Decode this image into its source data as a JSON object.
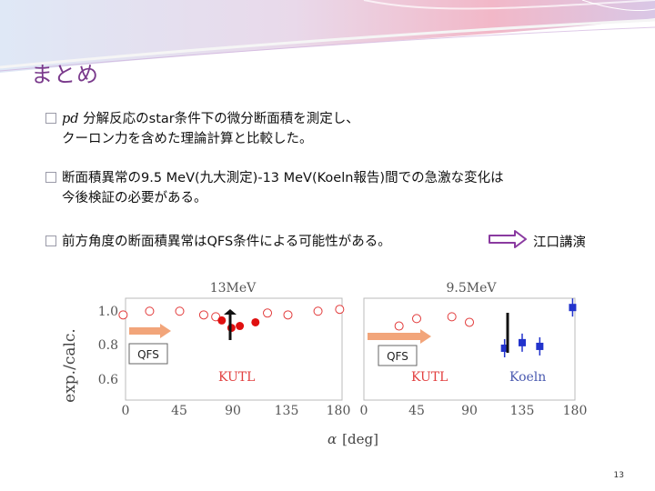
{
  "slide": {
    "title": "まとめ",
    "page_number": "13"
  },
  "bullets": [
    {
      "lines": [
        [
          "pd",
          " 分解反応のstar条件下の微分断面積を測定し、"
        ],
        [
          "クーロン力を含めた理論計算と比較した。"
        ]
      ]
    },
    {
      "lines": [
        [
          "断面積異常の9.5 MeV(九大測定)-13 MeV(Koeln報告)間での急激な変化は"
        ],
        [
          "今後検証の必要がある。"
        ]
      ]
    },
    {
      "lines": [
        [
          "前方角度の断面積異常はQFS条件による可能性がある。"
        ]
      ]
    }
  ],
  "reference": {
    "label": "江口講演"
  },
  "figure": {
    "y_label": "exp./calc.",
    "x_label_var": "α",
    "x_label_unit": "[deg]",
    "y_ticks": [
      "1.0",
      "0.8",
      "0.6"
    ],
    "x_ticks_left": [
      "0",
      "45",
      "90",
      "135",
      "180"
    ],
    "x_ticks_right": [
      "0",
      "45",
      "90",
      "135",
      "180"
    ],
    "panels": [
      {
        "title": "13MeV",
        "qfs_label": "QFS",
        "lab_label": "KUTL"
      },
      {
        "title": "9.5MeV",
        "qfs_label": "QFS",
        "lab_labels": [
          "KUTL",
          "Koeln"
        ]
      }
    ]
  },
  "chart_data": [
    {
      "type": "scatter",
      "title": "13MeV",
      "xlabel": "α [deg]",
      "ylabel": "exp./calc.",
      "xlim": [
        0,
        180
      ],
      "ylim": [
        0.5,
        1.05
      ],
      "series": [
        {
          "name": "",
          "marker": "open-circle",
          "color": "#e23a3a",
          "x": [
            -2,
            20,
            45,
            65,
            75,
            118,
            135,
            160,
            178
          ],
          "y": [
            0.96,
            0.98,
            0.98,
            0.96,
            0.95,
            0.97,
            0.96,
            0.98,
            0.99
          ]
        },
        {
          "name": "",
          "marker": "filled-circle",
          "color": "#e01010",
          "x": [
            80,
            88,
            95,
            108
          ],
          "y": [
            0.93,
            0.89,
            0.9,
            0.92
          ]
        }
      ]
    },
    {
      "type": "scatter",
      "title": "9.5MeV",
      "xlabel": "α [deg]",
      "ylabel": "exp./calc.",
      "xlim": [
        0,
        180
      ],
      "ylim": [
        0.5,
        1.05
      ],
      "series": [
        {
          "name": "KUTL",
          "marker": "open-circle",
          "color": "#e23a3a",
          "x": [
            30,
            45,
            75,
            90
          ],
          "y": [
            0.9,
            0.94,
            0.95,
            0.92
          ]
        },
        {
          "name": "Koeln",
          "marker": "filled-square",
          "color": "#2233cc",
          "x": [
            120,
            135,
            150,
            178
          ],
          "y": [
            0.78,
            0.81,
            0.79,
            1.0
          ]
        }
      ]
    }
  ],
  "colors": {
    "title": "#7a3a8c",
    "arrow": "#8a3aa0",
    "qfs_arrow": "#f2a57a",
    "kutl": "#e24040",
    "koeln": "#4a5ab0"
  }
}
